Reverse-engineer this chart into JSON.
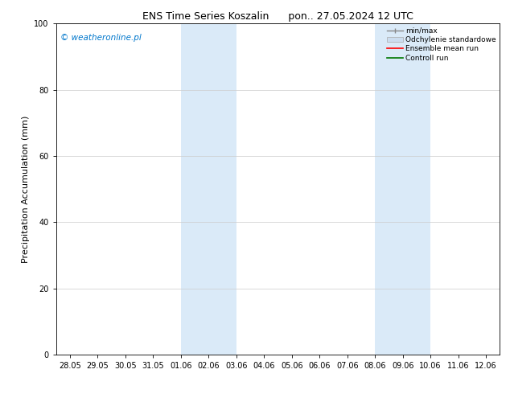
{
  "title_left": "ENS Time Series Koszalin",
  "title_right": "pon.. 27.05.2024 12 UTC",
  "ylabel": "Precipitation Accumulation (mm)",
  "ylim": [
    0,
    100
  ],
  "yticks": [
    0,
    20,
    40,
    60,
    80,
    100
  ],
  "background_color": "#ffffff",
  "plot_bg_color": "#ffffff",
  "watermark": "© weatheronline.pl",
  "watermark_color": "#0077cc",
  "x_tick_labels": [
    "28.05",
    "29.05",
    "30.05",
    "31.05",
    "01.06",
    "02.06",
    "03.06",
    "04.06",
    "05.06",
    "06.06",
    "07.06",
    "08.06",
    "09.06",
    "10.06",
    "11.06",
    "12.06"
  ],
  "shaded_regions": [
    {
      "x_start": "01.06",
      "x_end": "03.06"
    },
    {
      "x_start": "08.06",
      "x_end": "10.06"
    }
  ],
  "shaded_color": "#daeaf8",
  "legend_entries": [
    {
      "label": "min/max",
      "color": "#aaaaaa",
      "style": "minmax"
    },
    {
      "label": "Odchylenie standardowe",
      "color": "#ccddef",
      "style": "std"
    },
    {
      "label": "Ensemble mean run",
      "color": "#ff0000",
      "style": "line"
    },
    {
      "label": "Controll run",
      "color": "#007700",
      "style": "line"
    }
  ],
  "grid_color": "#cccccc",
  "tick_label_fontsize": 7,
  "axis_label_fontsize": 8,
  "title_fontsize": 9,
  "watermark_fontsize": 7.5,
  "legend_fontsize": 6.5
}
